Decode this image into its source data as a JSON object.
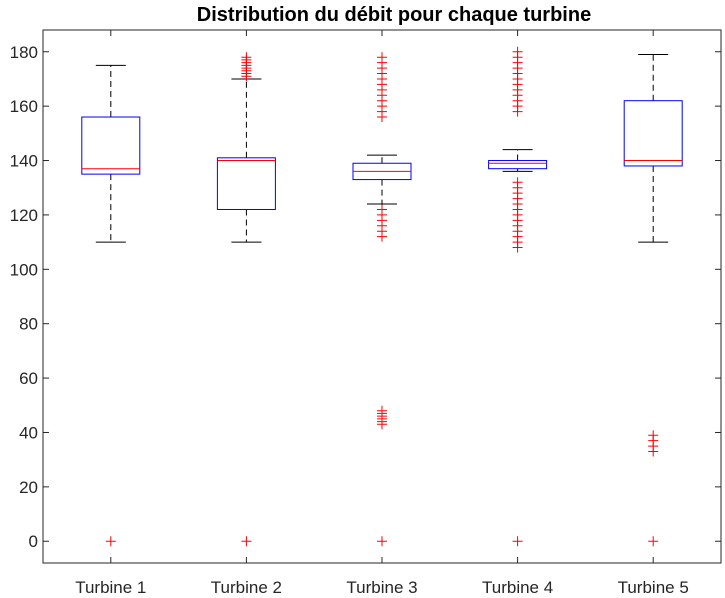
{
  "chart_data": {
    "type": "box",
    "title": "Distribution du débit pour chaque turbine",
    "xlabel": "",
    "ylabel": "",
    "ylim": [
      -8,
      188
    ],
    "yticks": [
      0,
      20,
      40,
      60,
      80,
      100,
      120,
      140,
      160,
      180
    ],
    "grid": false,
    "categories": [
      "Turbine 1",
      "Turbine 2",
      "Turbine 3",
      "Turbine 4",
      "Turbine 5"
    ],
    "colors": {
      "box": "#0000ff",
      "median": "#ff0000",
      "whisker": "#000000",
      "outlier": "#ff0000"
    },
    "boxes": [
      {
        "name": "Turbine 1",
        "whisker_low": 110,
        "q1": 135,
        "median": 137,
        "q3": 156,
        "whisker_high": 175,
        "outliers": [
          0
        ]
      },
      {
        "name": "Turbine 2",
        "whisker_low": 110,
        "q1": 122,
        "median": 140,
        "q3": 141,
        "whisker_high": 170,
        "outliers": [
          0,
          171,
          172,
          173,
          174,
          175,
          176,
          177,
          178
        ]
      },
      {
        "name": "Turbine 3",
        "whisker_low": 124,
        "q1": 133,
        "median": 136,
        "q3": 139,
        "whisker_high": 142,
        "outliers": [
          0,
          43,
          44,
          45,
          46,
          47,
          48,
          112,
          114,
          116,
          118,
          120,
          122,
          156,
          158,
          160,
          162,
          164,
          166,
          168,
          170,
          172,
          174,
          176,
          178
        ]
      },
      {
        "name": "Turbine 4",
        "whisker_low": 136,
        "q1": 137,
        "median": 139,
        "q3": 140,
        "whisker_high": 144,
        "outliers": [
          0,
          108,
          110,
          112,
          114,
          116,
          118,
          120,
          122,
          124,
          126,
          128,
          130,
          132,
          158,
          160,
          162,
          164,
          166,
          168,
          170,
          172,
          174,
          176,
          178,
          180
        ]
      },
      {
        "name": "Turbine 5",
        "whisker_low": 110,
        "q1": 138,
        "median": 140,
        "q3": 162,
        "whisker_high": 179,
        "outliers": [
          0,
          33,
          35,
          37,
          39
        ]
      }
    ]
  }
}
